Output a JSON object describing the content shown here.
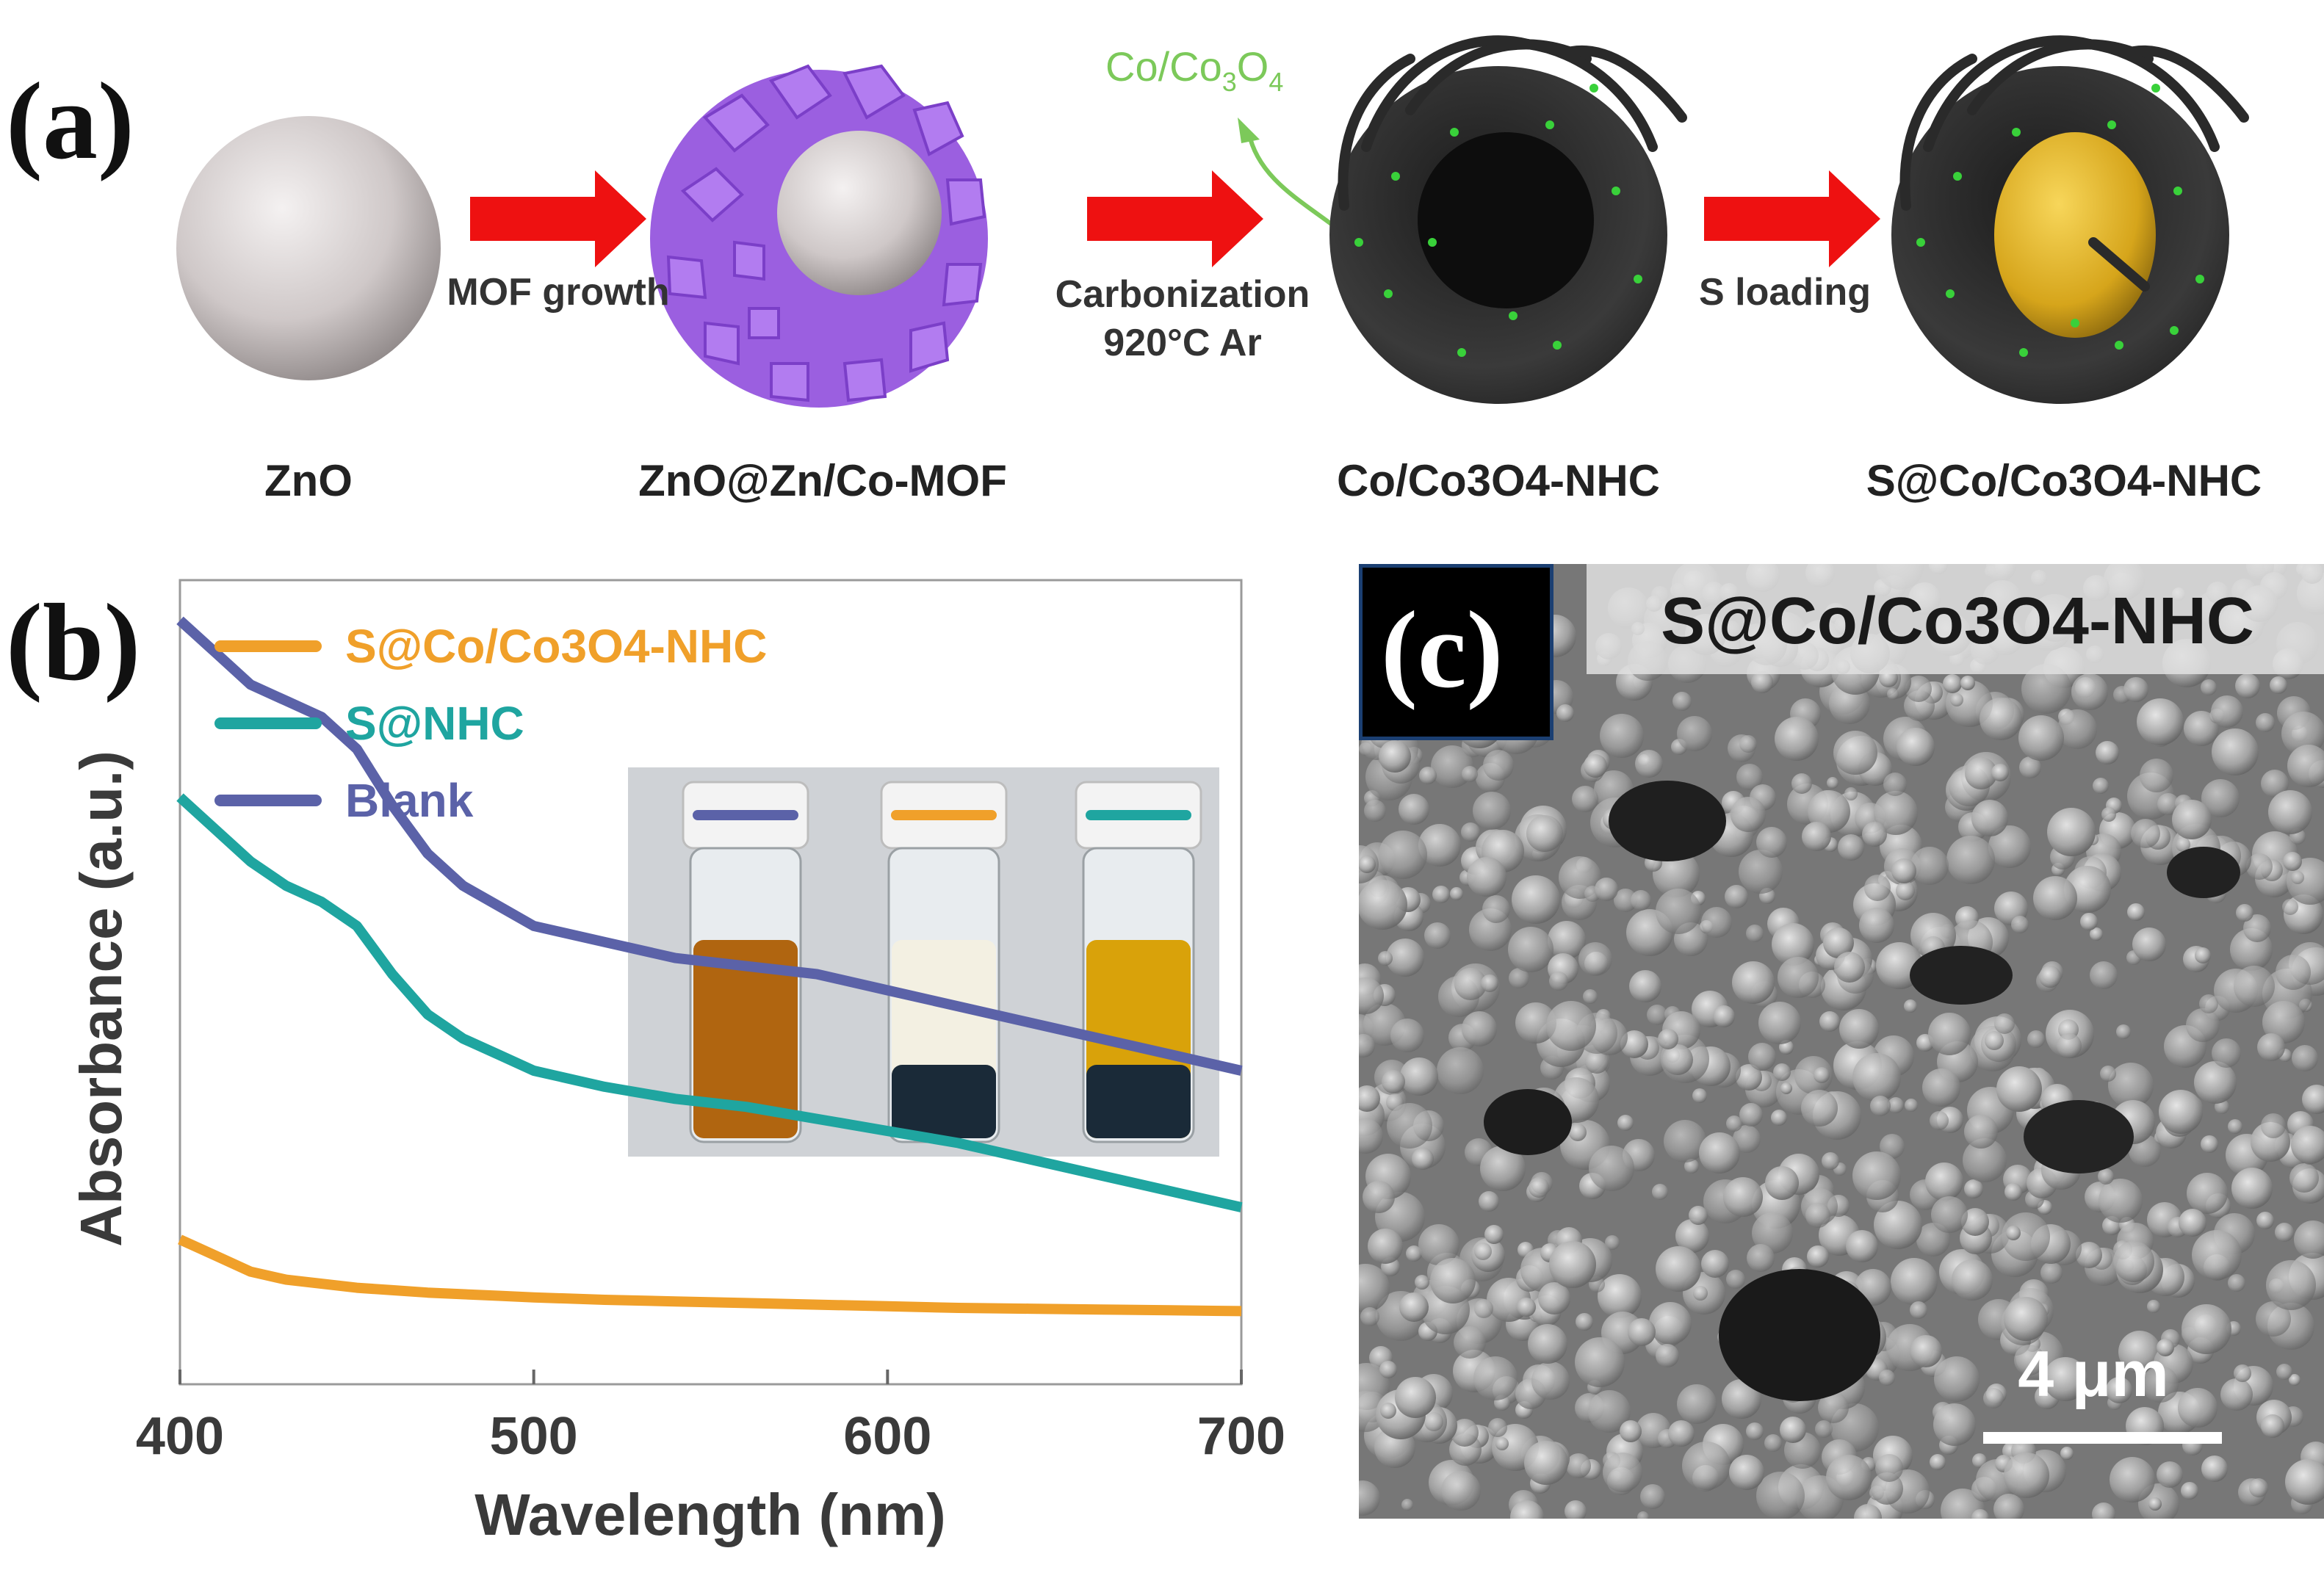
{
  "panel_a": {
    "label": "(a)",
    "species_tag": "Co/Co3O4",
    "steps": [
      {
        "line1": "MOF growth",
        "line2": ""
      },
      {
        "line1": "Carbonization",
        "line2": "920°C Ar"
      },
      {
        "line1": "S loading",
        "line2": ""
      }
    ],
    "names": [
      {
        "text": "ZnO"
      },
      {
        "text": "ZnO@Zn/Co-MOF"
      },
      {
        "text": "Co/Co3O4-NHC"
      },
      {
        "text": "S@Co/Co3O4-NHC"
      }
    ],
    "colors": {
      "arrow": "#ee1111",
      "mof": "#a468e8",
      "carbon": "#333333",
      "sulfur": "#d6a51b",
      "co_dot": "#39d13a",
      "tag": "#7cc95a"
    }
  },
  "panel_b": {
    "label": "(b)",
    "chart_data": {
      "type": "line",
      "xlabel": "Wavelength (nm)",
      "ylabel": "Absorbance (a.u.)",
      "xlim": [
        400,
        700
      ],
      "ylim": [
        0,
        1
      ],
      "xticks": [
        "400",
        "500",
        "600",
        "700"
      ],
      "legend_placement": "top-left",
      "x": [
        400,
        410,
        420,
        430,
        440,
        450,
        460,
        470,
        480,
        490,
        500,
        520,
        540,
        560,
        580,
        600,
        620,
        640,
        660,
        680,
        700
      ],
      "series": [
        {
          "name": "S@Co/Co3O4-NHC",
          "color": "#f0a02a",
          "values": [
            0.18,
            0.16,
            0.14,
            0.13,
            0.125,
            0.12,
            0.117,
            0.114,
            0.112,
            0.11,
            0.108,
            0.105,
            0.103,
            0.101,
            0.099,
            0.097,
            0.095,
            0.094,
            0.093,
            0.092,
            0.091
          ]
        },
        {
          "name": "S@NHC",
          "color": "#1fa5a0",
          "values": [
            0.73,
            0.69,
            0.65,
            0.62,
            0.6,
            0.57,
            0.51,
            0.46,
            0.43,
            0.41,
            0.39,
            0.37,
            0.355,
            0.345,
            0.33,
            0.315,
            0.3,
            0.28,
            0.26,
            0.24,
            0.22
          ]
        },
        {
          "name": "Blank",
          "color": "#5b62a8",
          "values": [
            0.95,
            0.91,
            0.87,
            0.85,
            0.83,
            0.79,
            0.72,
            0.66,
            0.62,
            0.595,
            0.57,
            0.55,
            0.53,
            0.52,
            0.51,
            0.49,
            0.47,
            0.45,
            0.43,
            0.41,
            0.39
          ]
        }
      ]
    },
    "inset": {
      "vials": [
        {
          "mark": "#5b62a8",
          "liquid": "#b06510"
        },
        {
          "mark": "#f0a02a",
          "liquid": "#f3f0e2"
        },
        {
          "mark": "#1fa5a0",
          "liquid": "#d9a20a"
        }
      ]
    }
  },
  "panel_c": {
    "label": "(c)",
    "title": "S@Co/Co3O4-NHC",
    "scale_bar": "4 μm"
  }
}
